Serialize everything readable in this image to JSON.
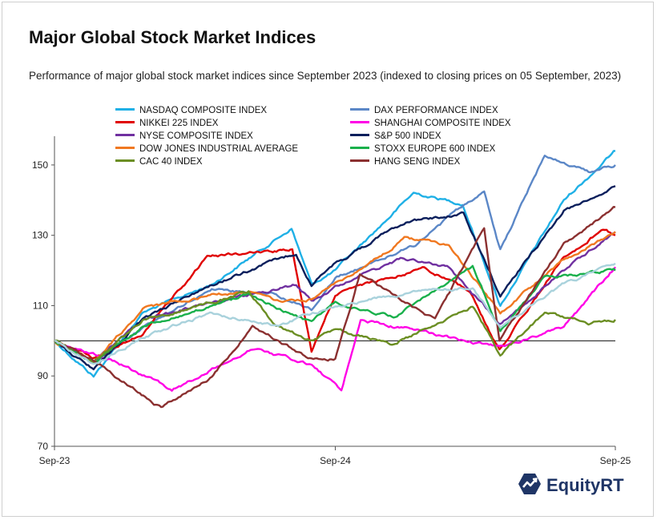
{
  "title": "Major Global Stock Market Indices",
  "subtitle": "Performance of major global stock market indices since September 2023 (indexed to closing prices on 05 September, 2023)",
  "brand": {
    "name": "EquityRT",
    "icon": "equityrt-logo-icon",
    "color": "#1f3566"
  },
  "chart_data": {
    "type": "line",
    "x_tick_labels": [
      "Sep-23",
      "Sep-24",
      "Sep-25"
    ],
    "x_range": [
      "2023-09-05",
      "2025-09-05"
    ],
    "ylim": [
      70,
      160
    ],
    "y_ticks": [
      70,
      90,
      110,
      130,
      150
    ],
    "reference_line": 100,
    "legend_placement": "top",
    "series": [
      {
        "name": "NASDAQ COMPOSITE INDEX",
        "color": "#1fb0e6",
        "points": [
          [
            "2023-09-05",
            100
          ],
          [
            "2023-10-26",
            90
          ],
          [
            "2023-12-29",
            108
          ],
          [
            "2024-03-28",
            116
          ],
          [
            "2024-07-10",
            132
          ],
          [
            "2024-08-05",
            116
          ],
          [
            "2024-09-05",
            120
          ],
          [
            "2024-12-16",
            142
          ],
          [
            "2025-02-18",
            139
          ],
          [
            "2025-04-08",
            110
          ],
          [
            "2025-06-30",
            140
          ],
          [
            "2025-09-05",
            154
          ]
        ]
      },
      {
        "name": "DAX PERFORMANCE INDEX",
        "color": "#5b87c7",
        "points": [
          [
            "2023-09-05",
            100
          ],
          [
            "2023-10-26",
            94
          ],
          [
            "2023-12-29",
            104
          ],
          [
            "2024-03-28",
            115
          ],
          [
            "2024-06-20",
            113
          ],
          [
            "2024-08-05",
            109
          ],
          [
            "2024-09-05",
            118
          ],
          [
            "2024-12-16",
            127
          ],
          [
            "2025-03-18",
            143
          ],
          [
            "2025-04-08",
            126
          ],
          [
            "2025-06-05",
            153
          ],
          [
            "2025-08-01",
            148
          ],
          [
            "2025-09-05",
            150
          ]
        ]
      },
      {
        "name": "NIKKEI 225 INDEX",
        "color": "#e00000",
        "points": [
          [
            "2023-09-05",
            100
          ],
          [
            "2023-10-26",
            95
          ],
          [
            "2023-12-29",
            102
          ],
          [
            "2024-03-22",
            124
          ],
          [
            "2024-07-11",
            126
          ],
          [
            "2024-08-05",
            97
          ],
          [
            "2024-09-05",
            113
          ],
          [
            "2024-12-30",
            121
          ],
          [
            "2025-02-28",
            114
          ],
          [
            "2025-04-07",
            97
          ],
          [
            "2025-06-30",
            124
          ],
          [
            "2025-08-20",
            132
          ],
          [
            "2025-09-05",
            130
          ]
        ]
      },
      {
        "name": "SHANGHAI COMPOSITE INDEX",
        "color": "#ff00e6",
        "points": [
          [
            "2023-09-05",
            100
          ],
          [
            "2023-11-15",
            95
          ],
          [
            "2024-02-05",
            86
          ],
          [
            "2024-05-20",
            98
          ],
          [
            "2024-08-05",
            93
          ],
          [
            "2024-09-13",
            86
          ],
          [
            "2024-10-08",
            106
          ],
          [
            "2024-12-16",
            103
          ],
          [
            "2025-04-07",
            98
          ],
          [
            "2025-06-30",
            104
          ],
          [
            "2025-09-05",
            121
          ]
        ]
      },
      {
        "name": "NYSE COMPOSITE INDEX",
        "color": "#7030a0",
        "points": [
          [
            "2023-09-05",
            100
          ],
          [
            "2023-10-26",
            94
          ],
          [
            "2023-12-29",
            106
          ],
          [
            "2024-03-28",
            111
          ],
          [
            "2024-07-16",
            116
          ],
          [
            "2024-08-05",
            111
          ],
          [
            "2024-09-05",
            115
          ],
          [
            "2024-11-29",
            123
          ],
          [
            "2025-01-31",
            121
          ],
          [
            "2025-04-08",
            105
          ],
          [
            "2025-06-30",
            120
          ],
          [
            "2025-09-05",
            131
          ]
        ]
      },
      {
        "name": "S&P 500 INDEX",
        "color": "#0a1f5c",
        "points": [
          [
            "2023-09-05",
            100
          ],
          [
            "2023-10-26",
            92
          ],
          [
            "2023-12-29",
            106
          ],
          [
            "2024-03-28",
            116
          ],
          [
            "2024-07-16",
            125
          ],
          [
            "2024-08-05",
            116
          ],
          [
            "2024-09-05",
            122
          ],
          [
            "2024-12-06",
            134
          ],
          [
            "2025-02-19",
            136
          ],
          [
            "2025-04-08",
            113
          ],
          [
            "2025-06-30",
            137
          ],
          [
            "2025-09-05",
            144
          ]
        ]
      },
      {
        "name": "DOW JONES INDUSTRIAL AVERAGE",
        "color": "#f07820",
        "points": [
          [
            "2023-09-05",
            100
          ],
          [
            "2023-10-26",
            94
          ],
          [
            "2023-12-29",
            109
          ],
          [
            "2024-03-28",
            113
          ],
          [
            "2024-05-17",
            114
          ],
          [
            "2024-06-26",
            111
          ],
          [
            "2024-08-05",
            112
          ],
          [
            "2024-09-05",
            116
          ],
          [
            "2024-12-04",
            129
          ],
          [
            "2025-01-31",
            127
          ],
          [
            "2025-04-08",
            108
          ],
          [
            "2025-06-30",
            123
          ],
          [
            "2025-09-05",
            131
          ]
        ]
      },
      {
        "name": "STOXX EUROPE 600 INDEX",
        "color": "#19b04b",
        "points": [
          [
            "2023-09-05",
            100
          ],
          [
            "2023-10-26",
            94
          ],
          [
            "2023-12-29",
            104
          ],
          [
            "2024-03-28",
            110
          ],
          [
            "2024-05-15",
            113
          ],
          [
            "2024-08-05",
            105
          ],
          [
            "2024-09-05",
            111
          ],
          [
            "2024-11-20",
            107
          ],
          [
            "2025-03-03",
            121
          ],
          [
            "2025-04-08",
            103
          ],
          [
            "2025-06-05",
            118
          ],
          [
            "2025-09-05",
            120
          ]
        ]
      },
      {
        "name": "CAC 40 INDEX",
        "color": "#6b8e23",
        "points": [
          [
            "2023-09-05",
            100
          ],
          [
            "2023-10-26",
            94
          ],
          [
            "2023-12-29",
            106
          ],
          [
            "2024-05-15",
            114
          ],
          [
            "2024-06-20",
            104
          ],
          [
            "2024-08-05",
            100
          ],
          [
            "2024-09-05",
            103
          ],
          [
            "2024-11-20",
            99
          ],
          [
            "2025-03-03",
            110
          ],
          [
            "2025-04-08",
            96
          ],
          [
            "2025-06-05",
            108
          ],
          [
            "2025-08-01",
            105
          ],
          [
            "2025-09-05",
            106
          ]
        ]
      },
      {
        "name": "HANG SENG INDEX",
        "color": "#8b3030",
        "points": [
          [
            "2023-09-05",
            100
          ],
          [
            "2023-10-26",
            94
          ],
          [
            "2024-01-22",
            81
          ],
          [
            "2024-03-28",
            90
          ],
          [
            "2024-05-20",
            104
          ],
          [
            "2024-08-05",
            95
          ],
          [
            "2024-09-05",
            95
          ],
          [
            "2024-10-07",
            119
          ],
          [
            "2025-01-13",
            106
          ],
          [
            "2025-03-18",
            132
          ],
          [
            "2025-04-07",
            100
          ],
          [
            "2025-06-30",
            128
          ],
          [
            "2025-09-05",
            138
          ]
        ]
      },
      {
        "name": "",
        "color": "#a9d2dc",
        "points": [
          [
            "2023-09-05",
            100
          ],
          [
            "2023-10-26",
            93
          ],
          [
            "2023-12-29",
            101
          ],
          [
            "2024-03-28",
            108
          ],
          [
            "2024-06-20",
            104
          ],
          [
            "2024-09-05",
            110
          ],
          [
            "2024-12-16",
            114
          ],
          [
            "2025-03-03",
            115
          ],
          [
            "2025-04-08",
            104
          ],
          [
            "2025-06-30",
            116
          ],
          [
            "2025-09-05",
            122
          ]
        ]
      }
    ]
  }
}
